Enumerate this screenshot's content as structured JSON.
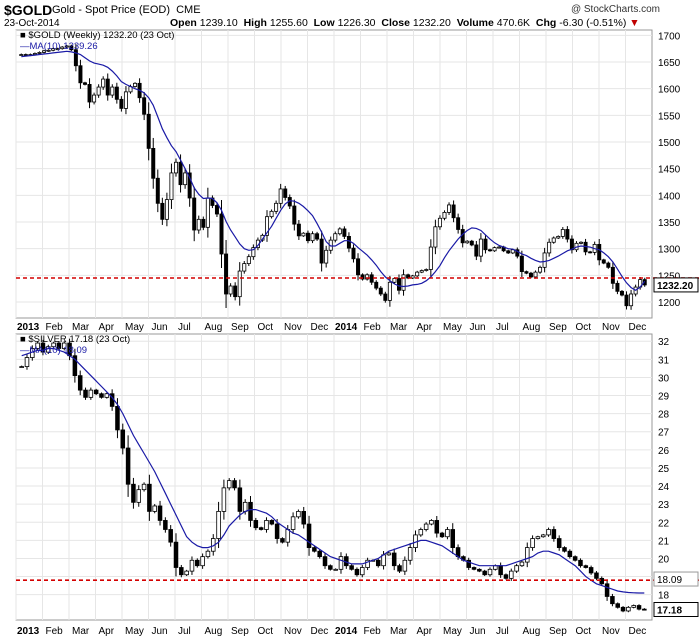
{
  "header": {
    "symbol": "$GOLD",
    "name": "Gold - Spot Price (EOD)",
    "exchange": "CME",
    "date": "23-Oct-2014",
    "brand": "@ StockCharts.com",
    "open_label": "Open",
    "open": "1239.10",
    "high_label": "High",
    "high": "1255.60",
    "low_label": "Low",
    "low": "1226.30",
    "close_label": "Close",
    "close": "1232.20",
    "volume_label": "Volume",
    "volume": "470.6K",
    "chg_label": "Chg",
    "chg": "-6.30 (-0.51%)",
    "chg_arrow": "▼"
  },
  "colors": {
    "candle": "#000000",
    "ma": "#1a1aa6",
    "support": "#d40000",
    "grid": "#e6e6e6"
  },
  "chart_data": [
    {
      "type": "candlestick",
      "title": "$GOLD (Weekly) 1232.20 (23 Oct)",
      "ma_label": "MA(10) 1239.26",
      "last_value_tag": "1232.20",
      "y_ticks": [
        1200,
        1250,
        1300,
        1350,
        1400,
        1450,
        1500,
        1550,
        1600,
        1650,
        1700
      ],
      "ylim": [
        1170,
        1710
      ],
      "support_level": 1245,
      "x_tick_labels": [
        "2013",
        "Feb",
        "Mar",
        "Apr",
        "May",
        "Jun",
        "Jul",
        "Aug",
        "Sep",
        "Oct",
        "Nov",
        "Dec",
        "2014",
        "Feb",
        "Mar",
        "Apr",
        "May",
        "Jun",
        "Jul",
        "Aug",
        "Sep",
        "Oct",
        "Nov",
        "Dec"
      ],
      "close": [
        1664,
        1663,
        1664,
        1666,
        1668,
        1671,
        1672,
        1675,
        1675,
        1678,
        1680,
        1673,
        1643,
        1611,
        1608,
        1575,
        1588,
        1603,
        1618,
        1588,
        1603,
        1580,
        1563,
        1594,
        1604,
        1610,
        1583,
        1552,
        1488,
        1432,
        1385,
        1355,
        1392,
        1442,
        1462,
        1420,
        1442,
        1395,
        1335,
        1355,
        1340,
        1395,
        1381,
        1365,
        1290,
        1215,
        1230,
        1210,
        1258,
        1272,
        1285,
        1302,
        1316,
        1325,
        1360,
        1370,
        1385,
        1412,
        1396,
        1380,
        1346,
        1324,
        1329,
        1315,
        1328,
        1318,
        1273,
        1297,
        1316,
        1328,
        1337,
        1323,
        1301,
        1281,
        1251,
        1243,
        1251,
        1237,
        1226,
        1215,
        1203,
        1237,
        1244,
        1222,
        1251,
        1245,
        1249,
        1256,
        1259,
        1261,
        1303,
        1341,
        1357,
        1368,
        1382,
        1358,
        1336,
        1311,
        1314,
        1307,
        1286,
        1318,
        1298,
        1296,
        1302,
        1303,
        1296,
        1292,
        1298,
        1286,
        1257,
        1254,
        1247,
        1256,
        1265,
        1292,
        1312,
        1320,
        1323,
        1336,
        1318,
        1298,
        1310,
        1312,
        1294,
        1293,
        1308,
        1279,
        1273,
        1265,
        1235,
        1220,
        1213,
        1193,
        1215,
        1228,
        1242,
        1232
      ],
      "ma10": [
        1660,
        1661,
        1662,
        1663,
        1664,
        1665,
        1666,
        1667,
        1668,
        1669,
        1670,
        1669,
        1667,
        1664,
        1658,
        1652,
        1648,
        1646,
        1644,
        1640,
        1633,
        1624,
        1613,
        1608,
        1604,
        1600,
        1597,
        1592,
        1583,
        1569,
        1547,
        1525,
        1508,
        1493,
        1482,
        1466,
        1450,
        1433,
        1414,
        1402,
        1394,
        1395,
        1394,
        1386,
        1372,
        1351,
        1335,
        1322,
        1309,
        1300,
        1297,
        1298,
        1306,
        1318,
        1330,
        1342,
        1357,
        1372,
        1384,
        1390,
        1389,
        1385,
        1379,
        1371,
        1362,
        1347,
        1331,
        1313,
        1305,
        1305,
        1310,
        1315,
        1315,
        1310,
        1302,
        1295,
        1288,
        1279,
        1269,
        1257,
        1247,
        1240,
        1234,
        1230,
        1229,
        1230,
        1232,
        1233,
        1235,
        1240,
        1247,
        1257,
        1268,
        1283,
        1296,
        1307,
        1318,
        1327,
        1334,
        1339,
        1338,
        1334,
        1326,
        1318,
        1311,
        1306,
        1303,
        1300,
        1299,
        1295,
        1290,
        1287,
        1282,
        1278,
        1275,
        1276,
        1278,
        1282,
        1286,
        1291,
        1296,
        1299,
        1303,
        1305,
        1304,
        1303,
        1300,
        1298,
        1292,
        1285,
        1275,
        1262,
        1248,
        1236,
        1227,
        1222,
        1228,
        1239
      ]
    },
    {
      "type": "candlestick",
      "title": "$SILVER 17.18 (23 Oct)",
      "ma_label": "MA(10) 18.09",
      "last_value_tag": "17.18",
      "ma_value_tag": "18.09",
      "y_ticks": [
        18,
        19,
        20,
        21,
        22,
        23,
        24,
        25,
        26,
        27,
        28,
        29,
        30,
        31,
        32
      ],
      "ylim": [
        16.6,
        32.4
      ],
      "support_level": 18.8,
      "x_tick_labels": [
        "2013",
        "Feb",
        "Mar",
        "Apr",
        "May",
        "Jun",
        "Jul",
        "Aug",
        "Sep",
        "Oct",
        "Nov",
        "Dec",
        "2014",
        "Feb",
        "Mar",
        "Apr",
        "May",
        "Jun",
        "Jul",
        "Aug",
        "Sep",
        "Oct",
        "Nov",
        "Dec"
      ],
      "close": [
        30.6,
        31.1,
        31.6,
        31.9,
        31.4,
        31.7,
        31.9,
        31.6,
        31.9,
        31.2,
        30.1,
        29.3,
        28.9,
        29.3,
        29.1,
        28.9,
        29.1,
        28.4,
        27.1,
        26.1,
        24.1,
        23.1,
        23.8,
        24.1,
        22.6,
        22.9,
        22.1,
        21.6,
        20.9,
        19.5,
        19.1,
        19.3,
        19.9,
        19.6,
        20.1,
        20.4,
        21.1,
        22.6,
        23.9,
        24.3,
        23.9,
        22.6,
        23.1,
        22.1,
        21.7,
        21.6,
        22.1,
        21.9,
        21.1,
        20.9,
        21.6,
        22.3,
        22.6,
        21.9,
        20.6,
        20.4,
        20.1,
        19.6,
        19.4,
        19.4,
        20.1,
        19.6,
        19.4,
        19.1,
        19.5,
        19.9,
        19.9,
        19.6,
        20.2,
        20.3,
        19.6,
        19.3,
        19.9,
        20.6,
        21.3,
        21.6,
        21.9,
        22.1,
        21.4,
        21.2,
        21.6,
        20.6,
        20.1,
        19.9,
        19.5,
        19.4,
        19.3,
        19.1,
        19.4,
        19.6,
        19.1,
        18.9,
        19.3,
        19.6,
        19.8,
        20.6,
        21.1,
        21.2,
        21.3,
        21.6,
        21.1,
        20.6,
        20.4,
        20.1,
        19.9,
        19.6,
        19.5,
        19.2,
        18.9,
        18.6,
        17.9,
        17.5,
        17.3,
        17.1,
        17.3,
        17.4,
        17.2,
        17.18
      ],
      "ma10": [
        31.2,
        31.3,
        31.4,
        31.5,
        31.5,
        31.6,
        31.6,
        31.5,
        31.4,
        31.2,
        31.0,
        30.7,
        30.4,
        30.1,
        29.8,
        29.5,
        29.2,
        28.9,
        28.5,
        28.0,
        27.4,
        26.8,
        26.3,
        25.8,
        25.3,
        24.8,
        24.2,
        23.6,
        23.0,
        22.4,
        21.8,
        21.2,
        20.9,
        20.7,
        20.6,
        20.6,
        20.7,
        20.9,
        21.3,
        21.8,
        22.1,
        22.4,
        22.6,
        22.7,
        22.7,
        22.6,
        22.5,
        22.3,
        22.0,
        21.8,
        21.6,
        21.4,
        21.3,
        21.1,
        20.9,
        20.7,
        20.5,
        20.3,
        20.1,
        20.0,
        19.9,
        19.8,
        19.7,
        19.7,
        19.7,
        19.8,
        19.9,
        20.0,
        20.2,
        20.4,
        20.5,
        20.6,
        20.7,
        20.8,
        20.9,
        21.0,
        21.0,
        20.9,
        20.8,
        20.7,
        20.5,
        20.3,
        20.1,
        19.9,
        19.8,
        19.7,
        19.6,
        19.6,
        19.6,
        19.6,
        19.6,
        19.6,
        19.7,
        19.8,
        19.9,
        20.0,
        20.1,
        20.3,
        20.4,
        20.4,
        20.3,
        20.2,
        20.0,
        19.8,
        19.6,
        19.3,
        19.0,
        18.8,
        18.6,
        18.5,
        18.4,
        18.3,
        18.2,
        18.15,
        18.12,
        18.1,
        18.09,
        18.09
      ]
    }
  ]
}
